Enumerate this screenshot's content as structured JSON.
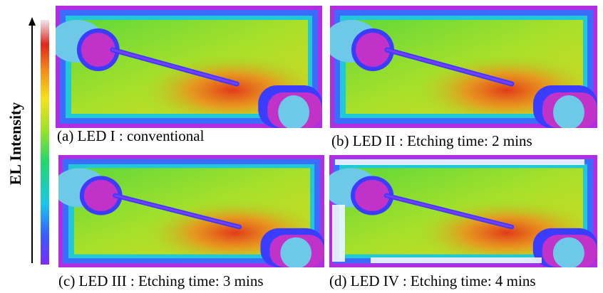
{
  "axis_label": "EL Intensity",
  "panels": [
    {
      "caption": "(a) LED I : conventional"
    },
    {
      "caption": "(b) LED II : Etching time: 2 mins"
    },
    {
      "caption": "(c) LED III : Etching time: 3 mins"
    },
    {
      "caption": "(d) LED IV : Etching time: 4 mins"
    }
  ]
}
